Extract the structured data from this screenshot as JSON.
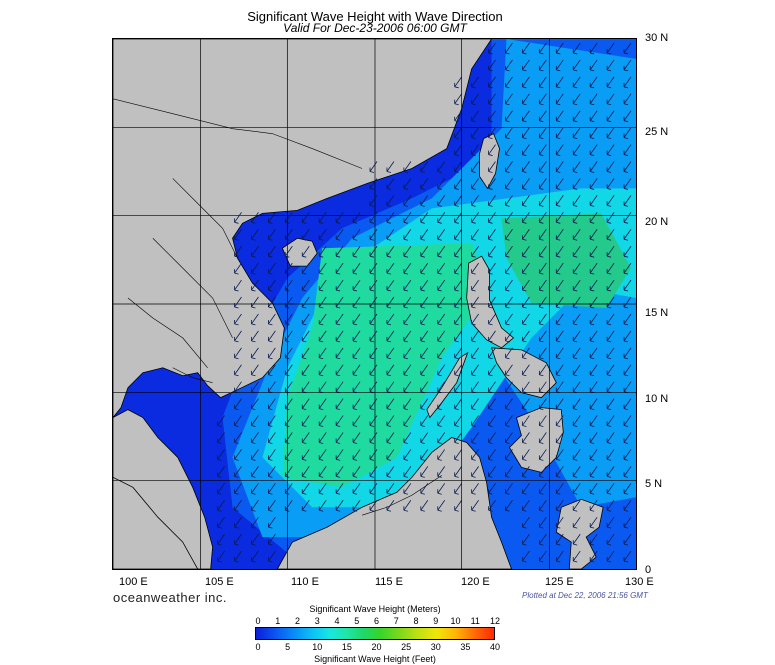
{
  "header": {
    "title": "Significant Wave Height with Wave Direction",
    "subtitle": "Valid For Dec-23-2006 06:00 GMT"
  },
  "axes": {
    "lat_labels": [
      "30 N",
      "25 N",
      "20 N",
      "15 N",
      "10 N",
      "5 N",
      "0"
    ],
    "lon_labels": [
      "100 E",
      "105 E",
      "110 E",
      "115 E",
      "120 E",
      "125 E",
      "130 E"
    ]
  },
  "footer": {
    "brand": "oceanweather inc.",
    "plotted": "Plotted at Dec 22, 2006 21:56 GMT"
  },
  "legend": {
    "meters_caption": "Significant Wave Height (Meters)",
    "feet_caption": "Significant Wave Height (Feet)",
    "meters_ticks": [
      "0",
      "1",
      "2",
      "3",
      "4",
      "5",
      "6",
      "7",
      "8",
      "9",
      "10",
      "11",
      "12"
    ],
    "feet_ticks": [
      "0",
      "5",
      "10",
      "15",
      "20",
      "25",
      "30",
      "35",
      "40"
    ],
    "colors": [
      "#0a1fd9",
      "#0a8cf7",
      "#1ae6e0",
      "#1fd86b",
      "#7ad81c",
      "#f2e60a",
      "#ff6a06",
      "#ff2a04"
    ]
  },
  "map_colors": {
    "land": "#c0c0c0",
    "deep_sea": "#0a2be0",
    "shallow_wave": "#0a5af2",
    "mid_wave": "#0a9df5",
    "high_wave": "#12d7e6",
    "peak_wave": "#20dba0"
  }
}
